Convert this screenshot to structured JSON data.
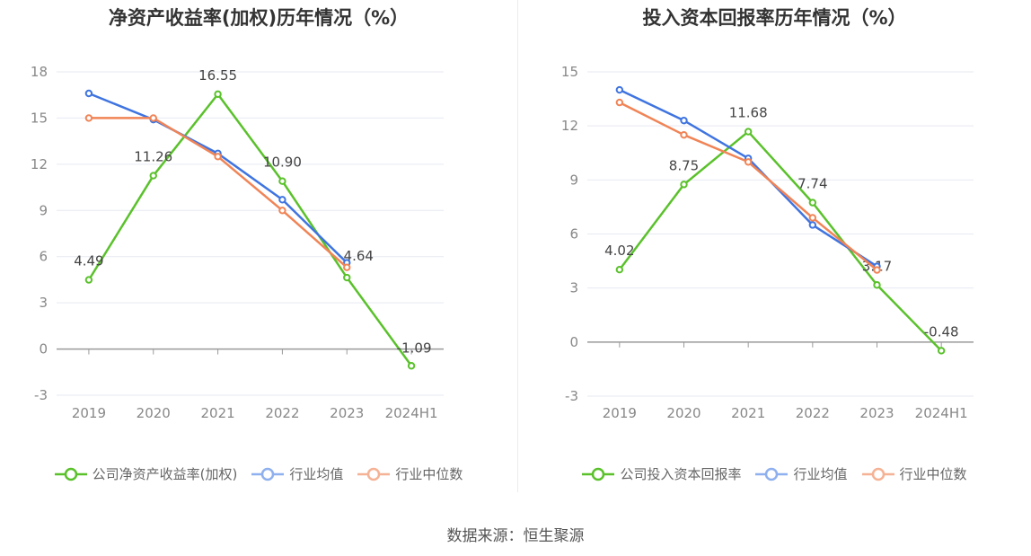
{
  "source": "数据来源：恒生聚源",
  "charts": [
    {
      "title": "净资产收益率(加权)历年情况（%）",
      "legend": [
        "公司净资产收益率(加权)",
        "行业均值",
        "行业中位数"
      ]
    },
    {
      "title": "投入资本回报率历年情况（%）",
      "legend": [
        "公司投入资本回报率",
        "行业均值",
        "行业中位数"
      ]
    }
  ],
  "chart_data": [
    {
      "type": "line",
      "title": "净资产收益率(加权)历年情况（%）",
      "categories": [
        "2019",
        "2020",
        "2021",
        "2022",
        "2023",
        "2024H1"
      ],
      "ylim": [
        -3,
        18
      ],
      "yticks": [
        -3,
        0,
        3,
        6,
        9,
        12,
        15,
        18
      ],
      "grid": true,
      "legend_position": "bottom",
      "series": [
        {
          "name": "公司净资产收益率(加权)",
          "color": "#5ac12b",
          "values": [
            4.49,
            11.26,
            16.55,
            10.9,
            4.64,
            -1.09
          ],
          "labels": [
            "4.49",
            "11.26",
            "16.55",
            "10.90",
            "4.64",
            "-1.09"
          ]
        },
        {
          "name": "行业均值",
          "color": "#3f74e0",
          "values": [
            16.6,
            14.9,
            12.7,
            9.7,
            5.6,
            null
          ]
        },
        {
          "name": "行业中位数",
          "color": "#f08456",
          "values": [
            15.0,
            15.0,
            12.5,
            9.0,
            5.3,
            null
          ]
        }
      ]
    },
    {
      "type": "line",
      "title": "投入资本回报率历年情况（%）",
      "categories": [
        "2019",
        "2020",
        "2021",
        "2022",
        "2023",
        "2024H1"
      ],
      "ylim": [
        -3,
        15
      ],
      "yticks": [
        -3,
        0,
        3,
        6,
        9,
        12,
        15
      ],
      "grid": true,
      "legend_position": "bottom",
      "series": [
        {
          "name": "公司投入资本回报率",
          "color": "#5ac12b",
          "values": [
            4.02,
            8.75,
            11.68,
            7.74,
            3.17,
            -0.48
          ],
          "labels": [
            "4.02",
            "8.75",
            "11.68",
            "7.74",
            "3.17",
            "-0.48"
          ]
        },
        {
          "name": "行业均值",
          "color": "#3f74e0",
          "values": [
            14.0,
            12.3,
            10.2,
            6.5,
            4.2,
            null
          ]
        },
        {
          "name": "行业中位数",
          "color": "#f08456",
          "values": [
            13.3,
            11.5,
            10.0,
            6.9,
            4.0,
            null
          ]
        }
      ]
    }
  ]
}
